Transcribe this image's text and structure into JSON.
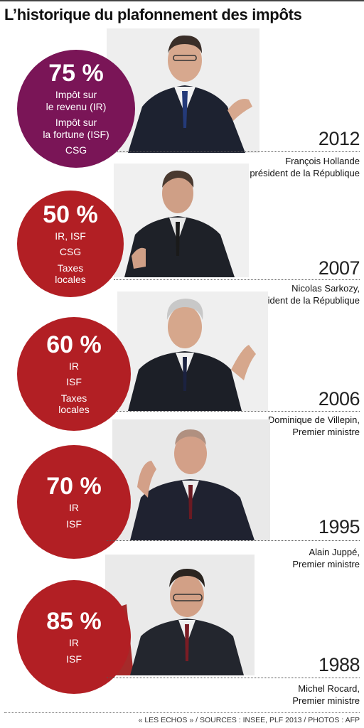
{
  "title": "L’historique du plafonnement des impôts",
  "colors": {
    "purple": "#7a1557",
    "red": "#b21f24"
  },
  "entries": [
    {
      "percent": "75 %",
      "taxes": [
        "Impôt sur",
        "le revenu (IR)",
        "Impôt sur",
        "la fortune (ISF)",
        "CSG"
      ],
      "year": "2012",
      "name": "François Hollande",
      "role": "président de la République",
      "color": "purple"
    },
    {
      "percent": "50 %",
      "taxes": [
        "IR, ISF",
        "CSG",
        "Taxes",
        "locales"
      ],
      "year": "2007",
      "name": "Nicolas Sarkozy,",
      "role": "président de la République",
      "color": "red"
    },
    {
      "percent": "60 %",
      "taxes": [
        "IR",
        "ISF",
        "Taxes",
        "locales"
      ],
      "year": "2006",
      "name": "Dominique de Villepin,",
      "role": "Premier ministre",
      "color": "red"
    },
    {
      "percent": "70 %",
      "taxes": [
        "IR",
        "ISF"
      ],
      "year": "1995",
      "name": "Alain Juppé,",
      "role": "Premier ministre",
      "color": "red"
    },
    {
      "percent": "85 %",
      "taxes": [
        "IR",
        "ISF"
      ],
      "year": "1988",
      "name": "Michel Rocard,",
      "role": "Premier ministre",
      "color": "red"
    }
  ],
  "footer": "« LES ECHOS » / SOURCES : INSEE, PLF 2013 / PHOTOS : AFP"
}
